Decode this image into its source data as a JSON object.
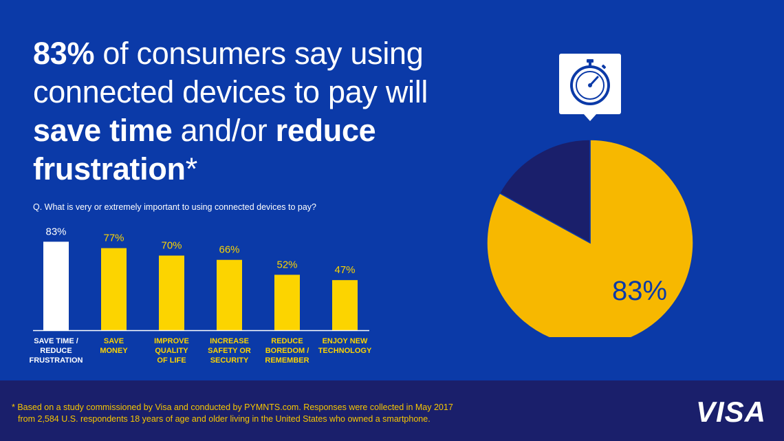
{
  "headline": {
    "part1_bold": "83%",
    "part2": " of consumers say using connected devices to pay will ",
    "part3_bold": "save time",
    "part4": " and/or ",
    "part5_bold": "reduce frustration",
    "part6": "*"
  },
  "question": "Q. What is very or extremely important to using connected devices to pay?",
  "colors": {
    "background": "#0b3aa8",
    "accent_yellow": "#fcd400",
    "pie_yellow": "#f7b800",
    "dark_navy": "#1a1f6b",
    "white": "#ffffff"
  },
  "icon": "stopwatch-icon",
  "chart_data": [
    {
      "type": "bar",
      "categories": [
        [
          "SAVE TIME /",
          "REDUCE",
          "FRUSTRATION"
        ],
        [
          "SAVE",
          "MONEY"
        ],
        [
          "IMPROVE",
          "QUALITY",
          "OF LIFE"
        ],
        [
          "INCREASE",
          "SAFETY OR",
          "SECURITY"
        ],
        [
          "REDUCE",
          "BOREDOM /",
          "REMEMBER"
        ],
        [
          "ENJOY NEW",
          "TECHNOLOGY"
        ]
      ],
      "values": [
        83,
        77,
        70,
        66,
        52,
        47
      ],
      "value_labels": [
        "83%",
        "77%",
        "70%",
        "66%",
        "52%",
        "47%"
      ],
      "highlight_index": 0,
      "ylim": [
        0,
        100
      ]
    },
    {
      "type": "pie",
      "slices": [
        {
          "label": "83%",
          "value": 83
        },
        {
          "label": "",
          "value": 17
        }
      ]
    }
  ],
  "footer": {
    "footnote_line1": "* Based on a study commissioned by Visa and conducted by PYMNTS.com. Responses were collected in May 2017",
    "footnote_line2": "from 2,584 U.S. respondents 18 years of age and older living in the United States who owned a smartphone.",
    "logo_text": "VISA"
  }
}
